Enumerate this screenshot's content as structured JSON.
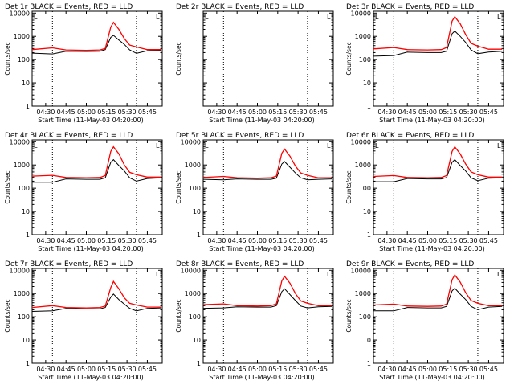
{
  "x_axis_label": "Start Time (11-May-03 04:20:00)",
  "y_axis_label": "Counts/sec",
  "legend_marker": "L",
  "colors": {
    "events": "#000000",
    "lld": "#ff0000",
    "axes": "#000000"
  },
  "chart_data": [
    {
      "type": "line",
      "title": "Det 1r BLACK = Events, RED = LLD",
      "x_ticks": [
        "04:30",
        "04:45",
        "05:00",
        "05:15",
        "05:30",
        "05:45"
      ],
      "y_scale": "log",
      "ylim": [
        1,
        12000
      ],
      "y_ticks": [
        "1",
        "10",
        "100",
        "1000",
        "10000"
      ],
      "xlim": [
        "04:20",
        "05:56"
      ],
      "reference_lines_x": [
        "04:35",
        "05:37"
      ],
      "x": [
        "04:20",
        "04:35",
        "04:45",
        "05:00",
        "05:10",
        "05:14",
        "05:18",
        "05:20",
        "05:24",
        "05:28",
        "05:32",
        "05:37",
        "05:45",
        "05:55"
      ],
      "series": [
        {
          "name": "Events",
          "values": [
            190,
            175,
            230,
            225,
            230,
            270,
            900,
            1100,
            700,
            450,
            260,
            185,
            240,
            250
          ]
        },
        {
          "name": "LLD",
          "values": [
            270,
            320,
            260,
            250,
            260,
            300,
            2500,
            4000,
            2000,
            800,
            420,
            350,
            270,
            270
          ]
        }
      ]
    },
    {
      "type": "line",
      "title": "Det 2r BLACK = Events, RED = LLD",
      "x_ticks": [
        "04:30",
        "04:45",
        "05:00",
        "05:15",
        "05:30",
        "05:45"
      ],
      "y_scale": "log",
      "ylim": [
        1,
        12000
      ],
      "y_ticks": [],
      "xlim": [
        "04:20",
        "05:56"
      ],
      "reference_lines_x": [
        "04:35",
        "05:37"
      ],
      "x": [],
      "series": []
    },
    {
      "type": "line",
      "title": "Det 3r BLACK = Events, RED = LLD",
      "x_ticks": [
        "04:30",
        "04:45",
        "05:00",
        "05:15",
        "05:30",
        "05:45"
      ],
      "y_scale": "log",
      "ylim": [
        1,
        12000
      ],
      "y_ticks": [
        "1",
        "10",
        "100",
        "1000",
        "10000"
      ],
      "xlim": [
        "04:20",
        "05:56"
      ],
      "reference_lines_x": [
        "04:35",
        "05:37"
      ],
      "x": [
        "04:20",
        "04:35",
        "04:45",
        "05:00",
        "05:10",
        "05:14",
        "05:18",
        "05:20",
        "05:24",
        "05:28",
        "05:32",
        "05:37",
        "05:45",
        "05:55"
      ],
      "series": [
        {
          "name": "Events",
          "values": [
            140,
            150,
            210,
            200,
            200,
            230,
            1300,
            1700,
            1000,
            550,
            260,
            180,
            210,
            230
          ]
        },
        {
          "name": "LLD",
          "values": [
            290,
            330,
            270,
            260,
            270,
            330,
            4500,
            7000,
            3500,
            1200,
            500,
            380,
            280,
            280
          ]
        }
      ]
    },
    {
      "type": "line",
      "title": "Det 4r BLACK = Events, RED = LLD",
      "x_ticks": [
        "04:30",
        "04:45",
        "05:00",
        "05:15",
        "05:30",
        "05:45"
      ],
      "y_scale": "log",
      "ylim": [
        1,
        12000
      ],
      "y_ticks": [
        "1",
        "10",
        "100",
        "1000",
        "10000"
      ],
      "xlim": [
        "04:20",
        "05:56"
      ],
      "reference_lines_x": [
        "04:35",
        "05:37"
      ],
      "x": [
        "04:20",
        "04:35",
        "04:45",
        "05:00",
        "05:10",
        "05:14",
        "05:18",
        "05:20",
        "05:24",
        "05:28",
        "05:32",
        "05:37",
        "05:45",
        "05:55"
      ],
      "series": [
        {
          "name": "Events",
          "values": [
            180,
            180,
            250,
            240,
            240,
            280,
            1300,
            1700,
            950,
            550,
            280,
            200,
            260,
            280
          ]
        },
        {
          "name": "LLD",
          "values": [
            330,
            360,
            290,
            280,
            290,
            350,
            3800,
            6000,
            3000,
            1000,
            480,
            380,
            300,
            300
          ]
        }
      ]
    },
    {
      "type": "line",
      "title": "Det 5r BLACK = Events, RED = LLD",
      "x_ticks": [
        "04:30",
        "04:45",
        "05:00",
        "05:15",
        "05:30",
        "05:45"
      ],
      "y_scale": "log",
      "ylim": [
        1,
        12000
      ],
      "y_ticks": [
        "1",
        "10",
        "100",
        "1000",
        "10000"
      ],
      "xlim": [
        "04:20",
        "05:56"
      ],
      "reference_lines_x": [
        "04:35",
        "05:37"
      ],
      "x": [
        "04:20",
        "04:35",
        "04:45",
        "05:00",
        "05:10",
        "05:14",
        "05:18",
        "05:20",
        "05:24",
        "05:28",
        "05:32",
        "05:37",
        "05:45",
        "05:55"
      ],
      "series": [
        {
          "name": "Events",
          "values": [
            240,
            230,
            250,
            240,
            240,
            270,
            1100,
            1400,
            800,
            450,
            280,
            230,
            240,
            250
          ]
        },
        {
          "name": "LLD",
          "values": [
            290,
            320,
            280,
            270,
            280,
            330,
            3200,
            4800,
            2400,
            900,
            450,
            360,
            280,
            280
          ]
        }
      ]
    },
    {
      "type": "line",
      "title": "Det 6r BLACK = Events, RED = LLD",
      "x_ticks": [
        "04:30",
        "04:45",
        "05:00",
        "05:15",
        "05:30",
        "05:45"
      ],
      "y_scale": "log",
      "ylim": [
        1,
        12000
      ],
      "y_ticks": [
        "1",
        "10",
        "100",
        "1000",
        "10000"
      ],
      "xlim": [
        "04:20",
        "05:56"
      ],
      "reference_lines_x": [
        "04:35",
        "05:37"
      ],
      "x": [
        "04:20",
        "04:35",
        "04:45",
        "05:00",
        "05:10",
        "05:14",
        "05:18",
        "05:20",
        "05:24",
        "05:28",
        "05:32",
        "05:37",
        "05:45",
        "05:55"
      ],
      "series": [
        {
          "name": "Events",
          "values": [
            190,
            190,
            260,
            250,
            250,
            290,
            1300,
            1700,
            950,
            550,
            280,
            210,
            270,
            280
          ]
        },
        {
          "name": "LLD",
          "values": [
            320,
            350,
            290,
            280,
            290,
            350,
            3800,
            6000,
            3000,
            1100,
            500,
            380,
            300,
            300
          ]
        }
      ]
    },
    {
      "type": "line",
      "title": "Det 7r BLACK = Events, RED = LLD",
      "x_ticks": [
        "04:30",
        "04:45",
        "05:00",
        "05:15",
        "05:30",
        "05:45"
      ],
      "y_scale": "log",
      "ylim": [
        1,
        12000
      ],
      "y_ticks": [
        "1",
        "10",
        "100",
        "1000",
        "10000"
      ],
      "xlim": [
        "04:20",
        "05:56"
      ],
      "reference_lines_x": [
        "04:35",
        "05:37"
      ],
      "x": [
        "04:20",
        "04:35",
        "04:45",
        "05:00",
        "05:10",
        "05:14",
        "05:18",
        "05:20",
        "05:24",
        "05:28",
        "05:32",
        "05:37",
        "05:45",
        "05:55"
      ],
      "series": [
        {
          "name": "Events",
          "values": [
            170,
            180,
            230,
            220,
            220,
            250,
            700,
            950,
            550,
            350,
            230,
            180,
            230,
            240
          ]
        },
        {
          "name": "LLD",
          "values": [
            250,
            300,
            250,
            240,
            250,
            290,
            1800,
            3300,
            1600,
            650,
            380,
            320,
            260,
            260
          ]
        }
      ]
    },
    {
      "type": "line",
      "title": "Det 8r BLACK = Events, RED = LLD",
      "x_ticks": [
        "04:30",
        "04:45",
        "05:00",
        "05:15",
        "05:30",
        "05:45"
      ],
      "y_scale": "log",
      "ylim": [
        1,
        12000
      ],
      "y_ticks": [
        "1",
        "10",
        "100",
        "1000",
        "10000"
      ],
      "xlim": [
        "04:20",
        "05:56"
      ],
      "reference_lines_x": [
        "04:35",
        "05:37"
      ],
      "x": [
        "04:20",
        "04:35",
        "04:45",
        "05:00",
        "05:10",
        "05:14",
        "05:18",
        "05:20",
        "05:24",
        "05:28",
        "05:32",
        "05:37",
        "05:45",
        "05:55"
      ],
      "series": [
        {
          "name": "Events",
          "values": [
            230,
            240,
            270,
            260,
            260,
            300,
            1200,
            1600,
            900,
            500,
            290,
            240,
            270,
            280
          ]
        },
        {
          "name": "LLD",
          "values": [
            330,
            360,
            300,
            290,
            300,
            360,
            3500,
            5500,
            2800,
            1000,
            480,
            380,
            300,
            300
          ]
        }
      ]
    },
    {
      "type": "line",
      "title": "Det 9r BLACK = Events, RED = LLD",
      "x_ticks": [
        "04:30",
        "04:45",
        "05:00",
        "05:15",
        "05:30",
        "05:45"
      ],
      "y_scale": "log",
      "ylim": [
        1,
        12000
      ],
      "y_ticks": [
        "1",
        "10",
        "100",
        "1000",
        "10000"
      ],
      "xlim": [
        "04:20",
        "05:56"
      ],
      "reference_lines_x": [
        "04:35",
        "05:37"
      ],
      "x": [
        "04:20",
        "04:35",
        "04:45",
        "05:00",
        "05:10",
        "05:14",
        "05:18",
        "05:20",
        "05:24",
        "05:28",
        "05:32",
        "05:37",
        "05:45",
        "05:55"
      ],
      "series": [
        {
          "name": "Events",
          "values": [
            180,
            180,
            250,
            240,
            240,
            280,
            1300,
            1700,
            950,
            550,
            280,
            200,
            260,
            280
          ]
        },
        {
          "name": "LLD",
          "values": [
            320,
            350,
            290,
            280,
            290,
            350,
            3900,
            6300,
            3100,
            1100,
            500,
            380,
            300,
            300
          ]
        }
      ]
    }
  ]
}
